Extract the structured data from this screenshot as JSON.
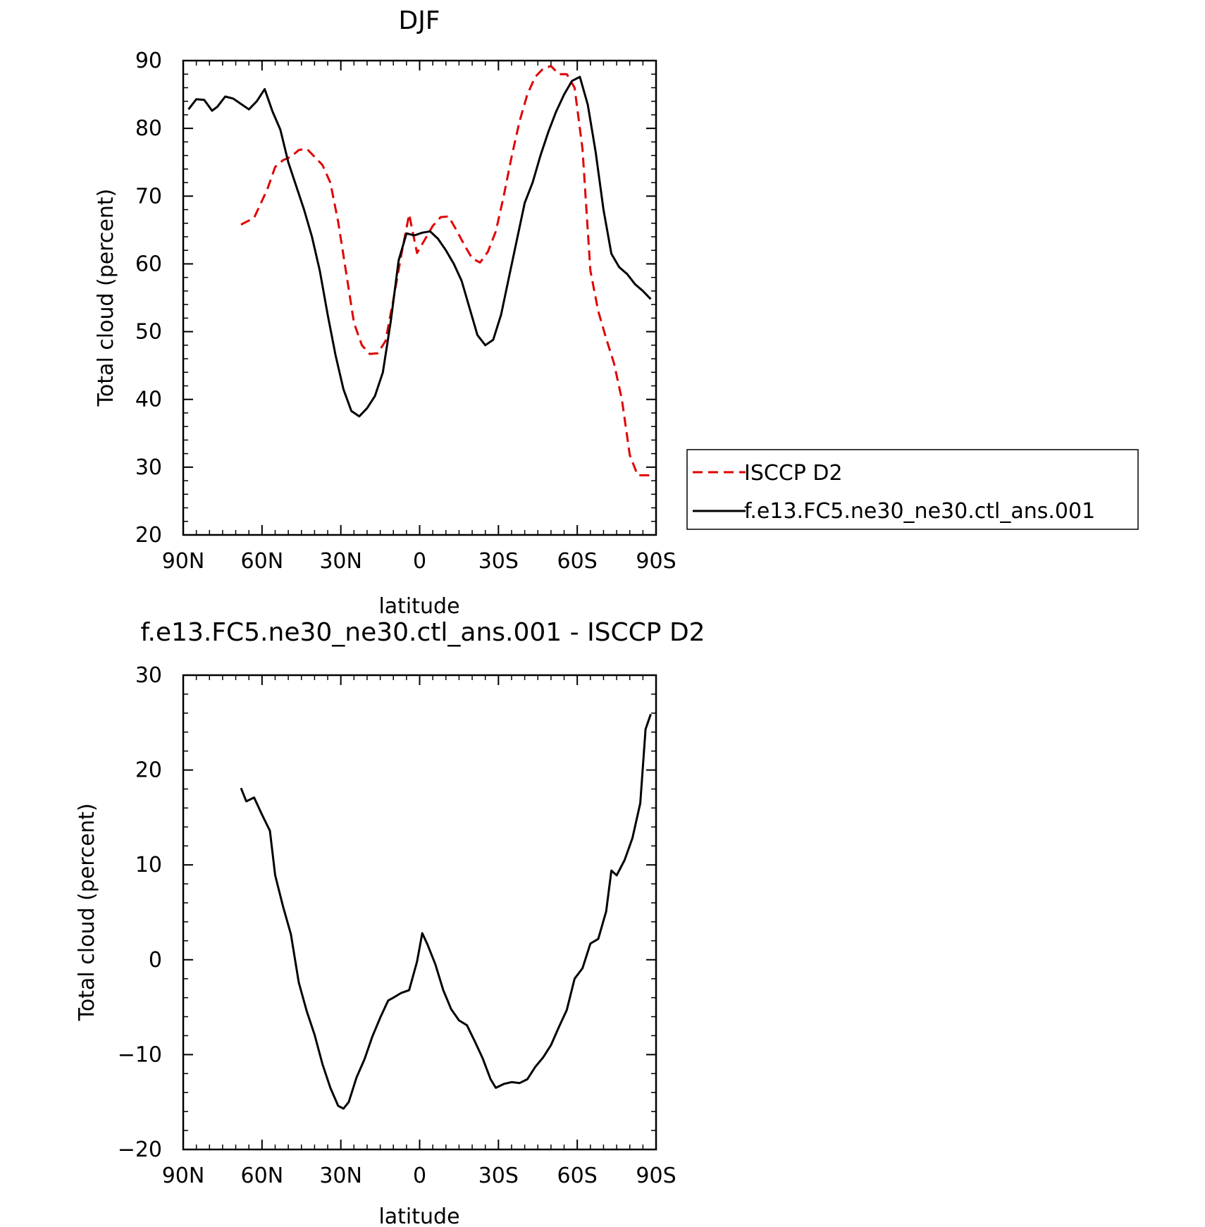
{
  "chart_data": [
    {
      "type": "line",
      "title": "DJF",
      "xlabel": "latitude",
      "ylabel": "Total cloud (percent)",
      "xlim": [
        -90,
        90
      ],
      "ylim": [
        20,
        90
      ],
      "x_ticks": [
        {
          "value": -90,
          "label": "90N"
        },
        {
          "value": -60,
          "label": "60N"
        },
        {
          "value": -30,
          "label": "30N"
        },
        {
          "value": 0,
          "label": "0"
        },
        {
          "value": 30,
          "label": "30S"
        },
        {
          "value": 60,
          "label": "60S"
        },
        {
          "value": 90,
          "label": "90S"
        }
      ],
      "y_ticks": [
        20,
        30,
        40,
        50,
        60,
        70,
        80,
        90
      ],
      "grid": false,
      "legend_position": "right",
      "series": [
        {
          "name": "ISCCP D2",
          "color": "#e00000",
          "dash": "dashed",
          "x": [
            -68,
            -63,
            -58,
            -55,
            -52,
            -49,
            -46,
            -43,
            -40,
            -37,
            -34,
            -31,
            -28,
            -25,
            -22,
            -19,
            -16,
            -13,
            -10,
            -7,
            -4,
            -1,
            2,
            5,
            8,
            11,
            14,
            17,
            20,
            23,
            26,
            29,
            32,
            35,
            38,
            41,
            44,
            47,
            50,
            53,
            56,
            59,
            62,
            65,
            68,
            71,
            74,
            77,
            80,
            83,
            86,
            89
          ],
          "values": [
            65.8,
            66.8,
            71.0,
            74.3,
            75.3,
            75.8,
            76.8,
            77.0,
            75.8,
            74.6,
            72.0,
            66.2,
            58.8,
            51.3,
            48.0,
            46.7,
            46.8,
            48.6,
            54.7,
            61.3,
            67.3,
            61.6,
            63.6,
            65.6,
            66.9,
            67.0,
            65.0,
            62.8,
            60.8,
            60.2,
            61.8,
            64.8,
            70.0,
            75.8,
            81.0,
            85.0,
            87.6,
            88.8,
            89.2,
            88.0,
            88.0,
            86.0,
            77.0,
            59.0,
            53.0,
            49.0,
            45.3,
            40.0,
            31.8,
            28.8,
            28.8,
            28.8
          ]
        },
        {
          "name": "f.e13.FC5.ne30_ne30.ctl_ans.001",
          "color": "#000000",
          "dash": "solid",
          "x": [
            -88,
            -85,
            -82,
            -79,
            -77,
            -74,
            -71,
            -68,
            -65,
            -62,
            -59,
            -56,
            -53,
            -50,
            -47,
            -44,
            -41,
            -38,
            -35,
            -32,
            -29,
            -26,
            -23,
            -20,
            -17,
            -14,
            -11,
            -8,
            -5,
            -2,
            1,
            4,
            7,
            10,
            13,
            16,
            19,
            22,
            25,
            28,
            31,
            34,
            37,
            40,
            43,
            46,
            49,
            52,
            55,
            58,
            61,
            64,
            67,
            70,
            73,
            76,
            79,
            82,
            85,
            88
          ],
          "values": [
            82.8,
            84.3,
            84.2,
            82.6,
            83.2,
            84.7,
            84.4,
            83.6,
            82.8,
            84.0,
            85.8,
            82.5,
            79.8,
            75.0,
            71.5,
            68.0,
            64.0,
            59.0,
            52.5,
            46.5,
            41.5,
            38.3,
            37.5,
            38.7,
            40.5,
            44.0,
            51.5,
            60.5,
            64.5,
            64.2,
            64.6,
            64.8,
            63.7,
            62.0,
            60.0,
            57.5,
            53.5,
            49.5,
            48.0,
            48.8,
            52.5,
            58.0,
            63.5,
            69.0,
            72.0,
            76.0,
            79.5,
            82.5,
            85.0,
            87.0,
            87.6,
            83.5,
            76.5,
            68.0,
            61.5,
            59.5,
            58.5,
            57.0,
            56.0,
            54.8
          ]
        }
      ]
    },
    {
      "type": "line",
      "title": "f.e13.FC5.ne30_ne30.ctl_ans.001 - ISCCP D2",
      "xlabel": "latitude",
      "ylabel": "Total cloud (percent)",
      "xlim": [
        -90,
        90
      ],
      "ylim": [
        -20,
        30
      ],
      "x_ticks": [
        {
          "value": -90,
          "label": "90N"
        },
        {
          "value": -60,
          "label": "60N"
        },
        {
          "value": -30,
          "label": "30N"
        },
        {
          "value": 0,
          "label": "0"
        },
        {
          "value": 30,
          "label": "30S"
        },
        {
          "value": 60,
          "label": "60S"
        },
        {
          "value": 90,
          "label": "90S"
        }
      ],
      "y_ticks": [
        -20,
        -10,
        0,
        10,
        20,
        30
      ],
      "y_tick_labels": [
        "−20",
        "−10",
        "0",
        "10",
        "20",
        "30"
      ],
      "grid": false,
      "series": [
        {
          "color": "#000000",
          "dash": "solid",
          "x": [
            -68,
            -66,
            -63,
            -60,
            -57,
            -55,
            -52,
            -49,
            -46,
            -43,
            -40,
            -37,
            -34,
            -31,
            -29,
            -27,
            -24,
            -21,
            -18,
            -15,
            -12,
            -10,
            -7,
            -4,
            -1,
            1,
            3,
            6,
            9,
            12,
            15,
            18,
            21,
            24,
            27,
            29,
            32,
            35,
            38,
            41,
            44,
            47,
            50,
            53,
            56,
            59,
            62,
            65,
            68,
            71,
            73,
            75,
            78,
            81,
            84,
            86,
            88
          ],
          "values": [
            18.1,
            16.7,
            17.1,
            15.3,
            13.6,
            8.9,
            5.6,
            2.7,
            -2.4,
            -5.4,
            -7.9,
            -11.0,
            -13.5,
            -15.4,
            -15.7,
            -15.0,
            -12.4,
            -10.5,
            -8.1,
            -6.1,
            -4.3,
            -4.0,
            -3.5,
            -3.2,
            -0.2,
            2.8,
            1.6,
            -0.5,
            -3.2,
            -5.2,
            -6.4,
            -6.9,
            -8.6,
            -10.4,
            -12.6,
            -13.5,
            -13.1,
            -12.9,
            -13.0,
            -12.6,
            -11.3,
            -10.3,
            -9.0,
            -7.1,
            -5.3,
            -2.0,
            -0.9,
            1.7,
            2.2,
            5.1,
            9.4,
            8.9,
            10.5,
            12.8,
            16.5,
            24.3,
            25.9
          ]
        }
      ]
    }
  ]
}
